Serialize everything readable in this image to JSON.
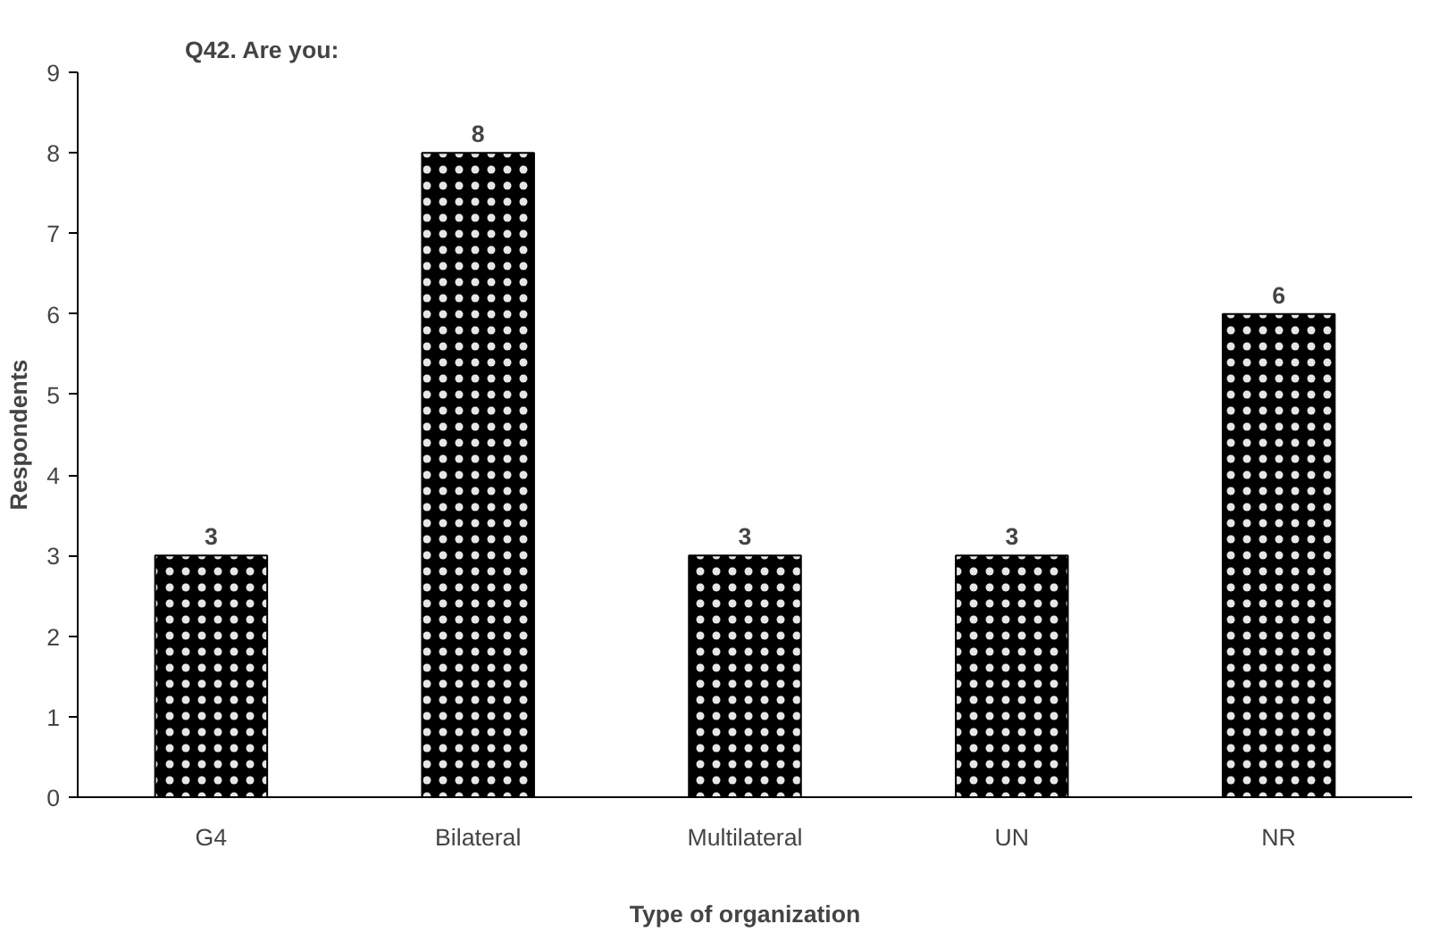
{
  "chart_data": {
    "type": "bar",
    "title": "Q42. Are you:",
    "xlabel": "Type of organization",
    "ylabel": "Respondents",
    "categories": [
      "G4",
      "Bilateral",
      "Multilateral",
      "UN",
      "NR"
    ],
    "values": [
      3,
      8,
      3,
      3,
      6
    ],
    "color": "#000000",
    "ylim": [
      0,
      9
    ],
    "yticks": [
      0,
      1,
      2,
      3,
      4,
      5,
      6,
      7,
      8,
      9
    ],
    "grid": false,
    "data_labels": true
  }
}
